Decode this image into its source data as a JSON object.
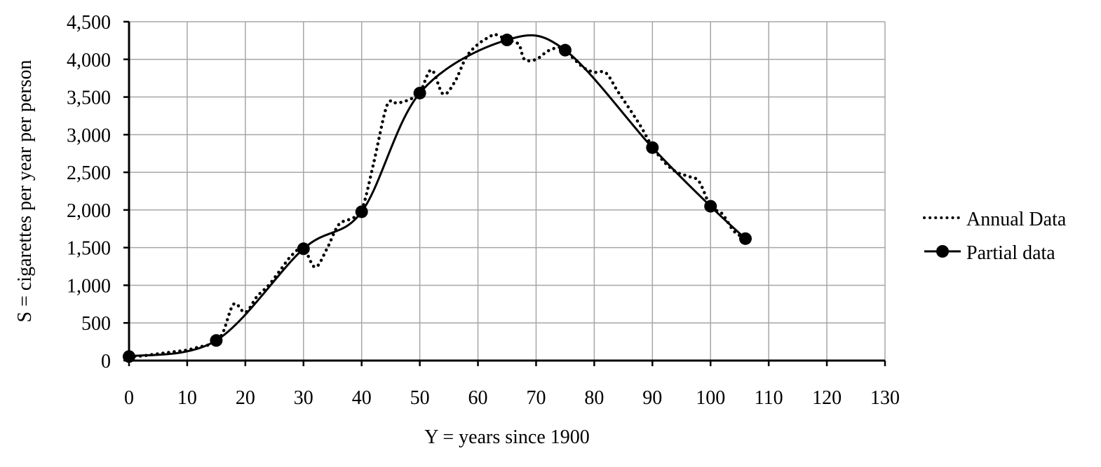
{
  "chart_data": {
    "type": "line",
    "xlabel": "Y = years since 1900",
    "ylabel": "S = cigarettes per year per person",
    "xlim": [
      0,
      130
    ],
    "ylim": [
      0,
      4500
    ],
    "x_ticks": [
      0,
      10,
      20,
      30,
      40,
      50,
      60,
      70,
      80,
      90,
      100,
      110,
      120,
      130
    ],
    "y_ticks": [
      0,
      500,
      1000,
      1500,
      2000,
      2500,
      3000,
      3500,
      4000,
      4500
    ],
    "x_tick_labels": [
      "0",
      "10",
      "20",
      "30",
      "40",
      "50",
      "60",
      "70",
      "80",
      "90",
      "100",
      "110",
      "120",
      "130"
    ],
    "y_tick_labels": [
      "0",
      "500",
      "1,000",
      "1,500",
      "2,000",
      "2,500",
      "3,000",
      "3,500",
      "4,000",
      "4,500"
    ],
    "grid": true,
    "legend_position": "right",
    "series": [
      {
        "name": "Annual Data",
        "style": "dotted",
        "color": "#000000",
        "x": [
          0,
          2,
          4,
          6,
          8,
          10,
          12,
          14,
          16,
          18,
          20,
          22,
          24,
          26,
          28,
          30,
          32,
          34,
          36,
          38,
          40,
          42,
          44,
          45,
          46,
          48,
          50,
          52,
          54,
          56,
          58,
          60,
          62,
          63,
          65,
          67,
          68,
          70,
          72,
          74,
          75,
          78,
          80,
          82,
          84,
          86,
          88,
          90,
          92,
          94,
          96,
          98,
          100,
          102,
          104,
          106
        ],
        "y": [
          55,
          60,
          80,
          100,
          120,
          140,
          180,
          220,
          350,
          750,
          640,
          850,
          1000,
          1200,
          1400,
          1490,
          1240,
          1480,
          1800,
          1880,
          2000,
          2600,
          3300,
          3450,
          3420,
          3460,
          3560,
          3860,
          3540,
          3700,
          4030,
          4200,
          4300,
          4330,
          4260,
          4200,
          4000,
          4000,
          4110,
          4160,
          4120,
          3900,
          3830,
          3820,
          3580,
          3350,
          3110,
          2840,
          2640,
          2510,
          2450,
          2380,
          2050,
          1950,
          1720,
          1620
        ]
      },
      {
        "name": "Partial data",
        "style": "solid-with-markers",
        "color": "#000000",
        "x": [
          0,
          15,
          30,
          40,
          50,
          65,
          75,
          90,
          100,
          106
        ],
        "y": [
          54,
          267,
          1485,
          1976,
          3552,
          4258,
          4122,
          2828,
          2049,
          1619
        ]
      }
    ]
  }
}
